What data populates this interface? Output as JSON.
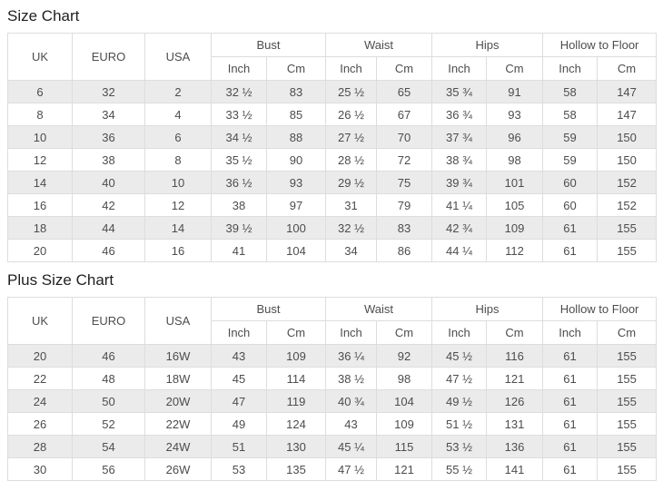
{
  "colors": {
    "row_stripe": "#ebebeb",
    "table_border": "#dddddd",
    "cell_text": "#4d4d4d",
    "title_text": "#1f1f1f"
  },
  "chart_data": [
    {
      "type": "table",
      "title": "Size Chart",
      "group_headers": [
        {
          "label": "UK",
          "colspan": 1,
          "rowspan": 2
        },
        {
          "label": "EURO",
          "colspan": 1,
          "rowspan": 2
        },
        {
          "label": "USA",
          "colspan": 1,
          "rowspan": 2
        },
        {
          "label": "Bust",
          "colspan": 2,
          "rowspan": 1
        },
        {
          "label": "Waist",
          "colspan": 2,
          "rowspan": 1
        },
        {
          "label": "Hips",
          "colspan": 2,
          "rowspan": 1
        },
        {
          "label": "Hollow to Floor",
          "colspan": 2,
          "rowspan": 1
        }
      ],
      "sub_headers": [
        "Inch",
        "Cm",
        "Inch",
        "Cm",
        "Inch",
        "Cm",
        "Inch",
        "Cm"
      ],
      "columns": [
        "UK",
        "EURO",
        "USA",
        "Bust Inch",
        "Bust Cm",
        "Waist Inch",
        "Waist Cm",
        "Hips Inch",
        "Hips Cm",
        "Hollow to Floor Inch",
        "Hollow to Floor Cm"
      ],
      "rows": [
        [
          "6",
          "32",
          "2",
          "32 ½",
          "83",
          "25 ½",
          "65",
          "35 ¾",
          "91",
          "58",
          "147"
        ],
        [
          "8",
          "34",
          "4",
          "33 ½",
          "85",
          "26 ½",
          "67",
          "36 ¾",
          "93",
          "58",
          "147"
        ],
        [
          "10",
          "36",
          "6",
          "34 ½",
          "88",
          "27 ½",
          "70",
          "37 ¾",
          "96",
          "59",
          "150"
        ],
        [
          "12",
          "38",
          "8",
          "35 ½",
          "90",
          "28 ½",
          "72",
          "38 ¾",
          "98",
          "59",
          "150"
        ],
        [
          "14",
          "40",
          "10",
          "36 ½",
          "93",
          "29 ½",
          "75",
          "39 ¾",
          "101",
          "60",
          "152"
        ],
        [
          "16",
          "42",
          "12",
          "38",
          "97",
          "31",
          "79",
          "41 ¼",
          "105",
          "60",
          "152"
        ],
        [
          "18",
          "44",
          "14",
          "39 ½",
          "100",
          "32 ½",
          "83",
          "42 ¾",
          "109",
          "61",
          "155"
        ],
        [
          "20",
          "46",
          "16",
          "41",
          "104",
          "34",
          "86",
          "44 ¼",
          "112",
          "61",
          "155"
        ]
      ]
    },
    {
      "type": "table",
      "title": "Plus Size Chart",
      "group_headers": [
        {
          "label": "UK",
          "colspan": 1,
          "rowspan": 2
        },
        {
          "label": "EURO",
          "colspan": 1,
          "rowspan": 2
        },
        {
          "label": "USA",
          "colspan": 1,
          "rowspan": 2
        },
        {
          "label": "Bust",
          "colspan": 2,
          "rowspan": 1
        },
        {
          "label": "Waist",
          "colspan": 2,
          "rowspan": 1
        },
        {
          "label": "Hips",
          "colspan": 2,
          "rowspan": 1
        },
        {
          "label": "Hollow to Floor",
          "colspan": 2,
          "rowspan": 1
        }
      ],
      "sub_headers": [
        "Inch",
        "Cm",
        "Inch",
        "Cm",
        "Inch",
        "Cm",
        "Inch",
        "Cm"
      ],
      "columns": [
        "UK",
        "EURO",
        "USA",
        "Bust Inch",
        "Bust Cm",
        "Waist Inch",
        "Waist Cm",
        "Hips Inch",
        "Hips Cm",
        "Hollow to Floor Inch",
        "Hollow to Floor Cm"
      ],
      "rows": [
        [
          "20",
          "46",
          "16W",
          "43",
          "109",
          "36 ¼",
          "92",
          "45 ½",
          "116",
          "61",
          "155"
        ],
        [
          "22",
          "48",
          "18W",
          "45",
          "114",
          "38 ½",
          "98",
          "47 ½",
          "121",
          "61",
          "155"
        ],
        [
          "24",
          "50",
          "20W",
          "47",
          "119",
          "40 ¾",
          "104",
          "49 ½",
          "126",
          "61",
          "155"
        ],
        [
          "26",
          "52",
          "22W",
          "49",
          "124",
          "43",
          "109",
          "51 ½",
          "131",
          "61",
          "155"
        ],
        [
          "28",
          "54",
          "24W",
          "51",
          "130",
          "45 ¼",
          "115",
          "53 ½",
          "136",
          "61",
          "155"
        ],
        [
          "30",
          "56",
          "26W",
          "53",
          "135",
          "47 ½",
          "121",
          "55 ½",
          "141",
          "61",
          "155"
        ]
      ]
    }
  ]
}
